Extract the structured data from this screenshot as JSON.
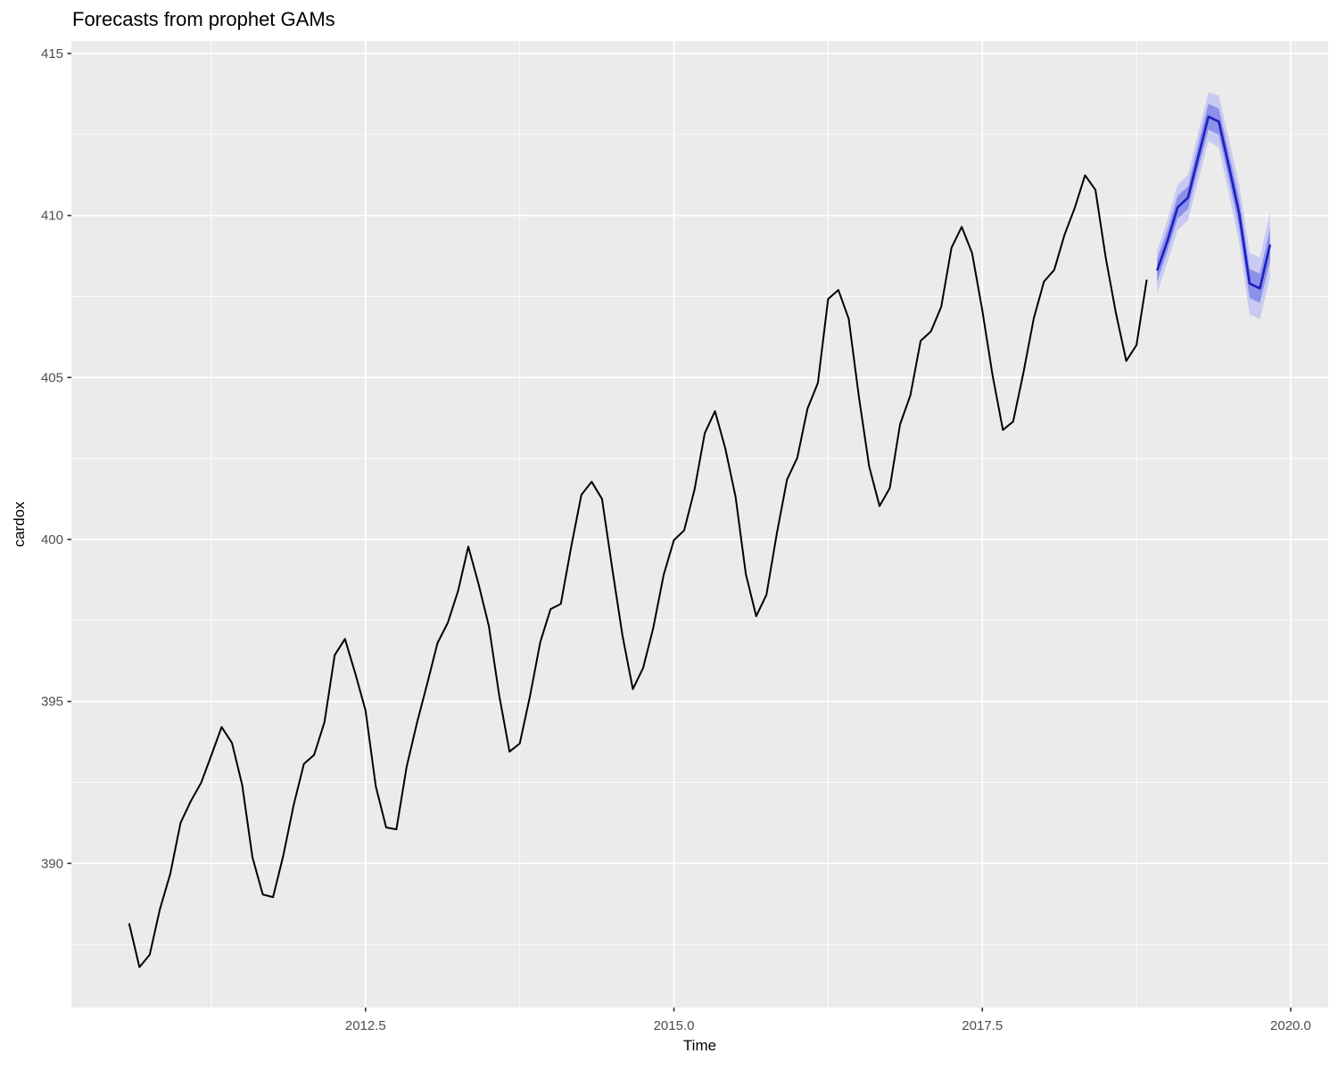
{
  "chart_data": {
    "type": "line",
    "title": "Forecasts from prophet GAMs",
    "xlabel": "Time",
    "ylabel": "cardox",
    "xlim": [
      2010.115,
      2020.304
    ],
    "ylim": [
      385.55,
      415.385
    ],
    "grid": true,
    "legend_position": "none",
    "panel_background": "#ebebeb",
    "grid_color": "#ffffff",
    "tick_color": "#333333",
    "tick_label_color": "#4d4d4d",
    "x_ticks": {
      "values": [
        2012.5,
        2015.0,
        2017.5,
        2020.0
      ],
      "labels": [
        "2012.5",
        "2015.0",
        "2017.5",
        "2020.0"
      ]
    },
    "y_ticks": {
      "values": [
        390,
        395,
        400,
        405,
        410,
        415
      ],
      "labels": [
        "390",
        "395",
        "400",
        "405",
        "410",
        "415"
      ]
    },
    "x_minor_breaks": [
      2011.25,
      2013.75,
      2016.25,
      2018.75
    ],
    "y_minor_breaks": [
      387.5,
      392.5,
      397.5,
      402.5,
      407.5,
      412.5
    ],
    "ribbons": [
      {
        "name": "forecast-interval-outer",
        "color": "#c8caf2",
        "x": [
          2018.917,
          2019.0,
          2019.083,
          2019.167,
          2019.25,
          2019.333,
          2019.417,
          2019.5,
          2019.583,
          2019.667,
          2019.75,
          2019.833
        ],
        "lower": [
          407.6,
          408.55,
          409.55,
          409.85,
          411.05,
          412.3,
          412.1,
          410.65,
          409.15,
          406.95,
          406.8,
          408.1
        ],
        "upper": [
          408.9,
          409.85,
          410.95,
          411.25,
          412.55,
          413.8,
          413.7,
          412.35,
          410.95,
          408.85,
          408.7,
          410.1
        ]
      },
      {
        "name": "forecast-interval-inner",
        "color": "#8c91e8",
        "x": [
          2018.917,
          2019.0,
          2019.083,
          2019.167,
          2019.25,
          2019.333,
          2019.417,
          2019.5,
          2019.583,
          2019.667,
          2019.75,
          2019.833
        ],
        "lower": [
          407.95,
          408.9,
          409.9,
          410.2,
          411.45,
          412.65,
          412.5,
          411.1,
          409.6,
          407.45,
          407.3,
          408.6
        ],
        "upper": [
          408.65,
          409.55,
          410.6,
          410.9,
          412.2,
          413.45,
          413.3,
          411.9,
          410.5,
          408.35,
          408.2,
          409.6
        ]
      }
    ],
    "series": [
      {
        "name": "observed",
        "color": "#000000",
        "width": 2,
        "x": [
          2010.583,
          2010.667,
          2010.75,
          2010.833,
          2010.917,
          2011.0,
          2011.083,
          2011.167,
          2011.25,
          2011.333,
          2011.417,
          2011.5,
          2011.583,
          2011.667,
          2011.75,
          2011.833,
          2011.917,
          2012.0,
          2012.083,
          2012.167,
          2012.25,
          2012.333,
          2012.417,
          2012.5,
          2012.583,
          2012.667,
          2012.75,
          2012.833,
          2012.917,
          2013.0,
          2013.083,
          2013.167,
          2013.25,
          2013.333,
          2013.417,
          2013.5,
          2013.583,
          2013.667,
          2013.75,
          2013.833,
          2013.917,
          2014.0,
          2014.083,
          2014.167,
          2014.25,
          2014.333,
          2014.417,
          2014.5,
          2014.583,
          2014.667,
          2014.75,
          2014.833,
          2014.917,
          2015.0,
          2015.083,
          2015.167,
          2015.25,
          2015.333,
          2015.417,
          2015.5,
          2015.583,
          2015.667,
          2015.75,
          2015.833,
          2015.917,
          2016.0,
          2016.083,
          2016.167,
          2016.25,
          2016.333,
          2016.417,
          2016.5,
          2016.583,
          2016.667,
          2016.75,
          2016.833,
          2016.917,
          2017.0,
          2017.083,
          2017.167,
          2017.25,
          2017.333,
          2017.417,
          2017.5,
          2017.583,
          2017.667,
          2017.75,
          2017.833,
          2017.917,
          2018.0,
          2018.083,
          2018.167,
          2018.25,
          2018.333,
          2018.417,
          2018.5,
          2018.583,
          2018.667,
          2018.75,
          2018.833
        ],
        "y": [
          388.15,
          386.8,
          387.18,
          388.59,
          389.68,
          391.25,
          391.92,
          392.49,
          393.34,
          394.21,
          393.72,
          392.42,
          390.19,
          389.04,
          388.96,
          390.24,
          391.8,
          393.07,
          393.35,
          394.36,
          396.43,
          396.93,
          395.86,
          394.72,
          392.38,
          391.11,
          391.05,
          392.98,
          394.34,
          395.55,
          396.8,
          397.43,
          398.41,
          399.78,
          398.61,
          397.32,
          395.2,
          393.45,
          393.7,
          395.16,
          396.84,
          397.85,
          398.01,
          399.77,
          401.38,
          401.78,
          401.25,
          399.1,
          397.03,
          395.38,
          396.03,
          397.28,
          398.91,
          399.98,
          400.28,
          401.54,
          403.28,
          403.96,
          402.8,
          401.31,
          398.93,
          397.63,
          398.29,
          400.16,
          401.85,
          402.52,
          404.04,
          404.83,
          407.42,
          407.7,
          406.81,
          404.39,
          402.25,
          401.03,
          401.59,
          403.55,
          404.45,
          406.13,
          406.42,
          407.18,
          409.0,
          409.65,
          408.84,
          407.07,
          405.07,
          403.38,
          403.64,
          405.14,
          406.82,
          407.96,
          408.32,
          409.41,
          410.24,
          411.24,
          410.79,
          408.71,
          406.99,
          405.51,
          406.0,
          408.02
        ]
      },
      {
        "name": "forecast",
        "color": "#1e1ec0",
        "width": 2.6,
        "x": [
          2018.917,
          2019.0,
          2019.083,
          2019.167,
          2019.25,
          2019.333,
          2019.417,
          2019.5,
          2019.583,
          2019.667,
          2019.75,
          2019.833
        ],
        "y": [
          408.3,
          409.2,
          410.25,
          410.55,
          411.8,
          413.05,
          412.9,
          411.5,
          410.05,
          407.9,
          407.75,
          409.1
        ]
      }
    ]
  }
}
